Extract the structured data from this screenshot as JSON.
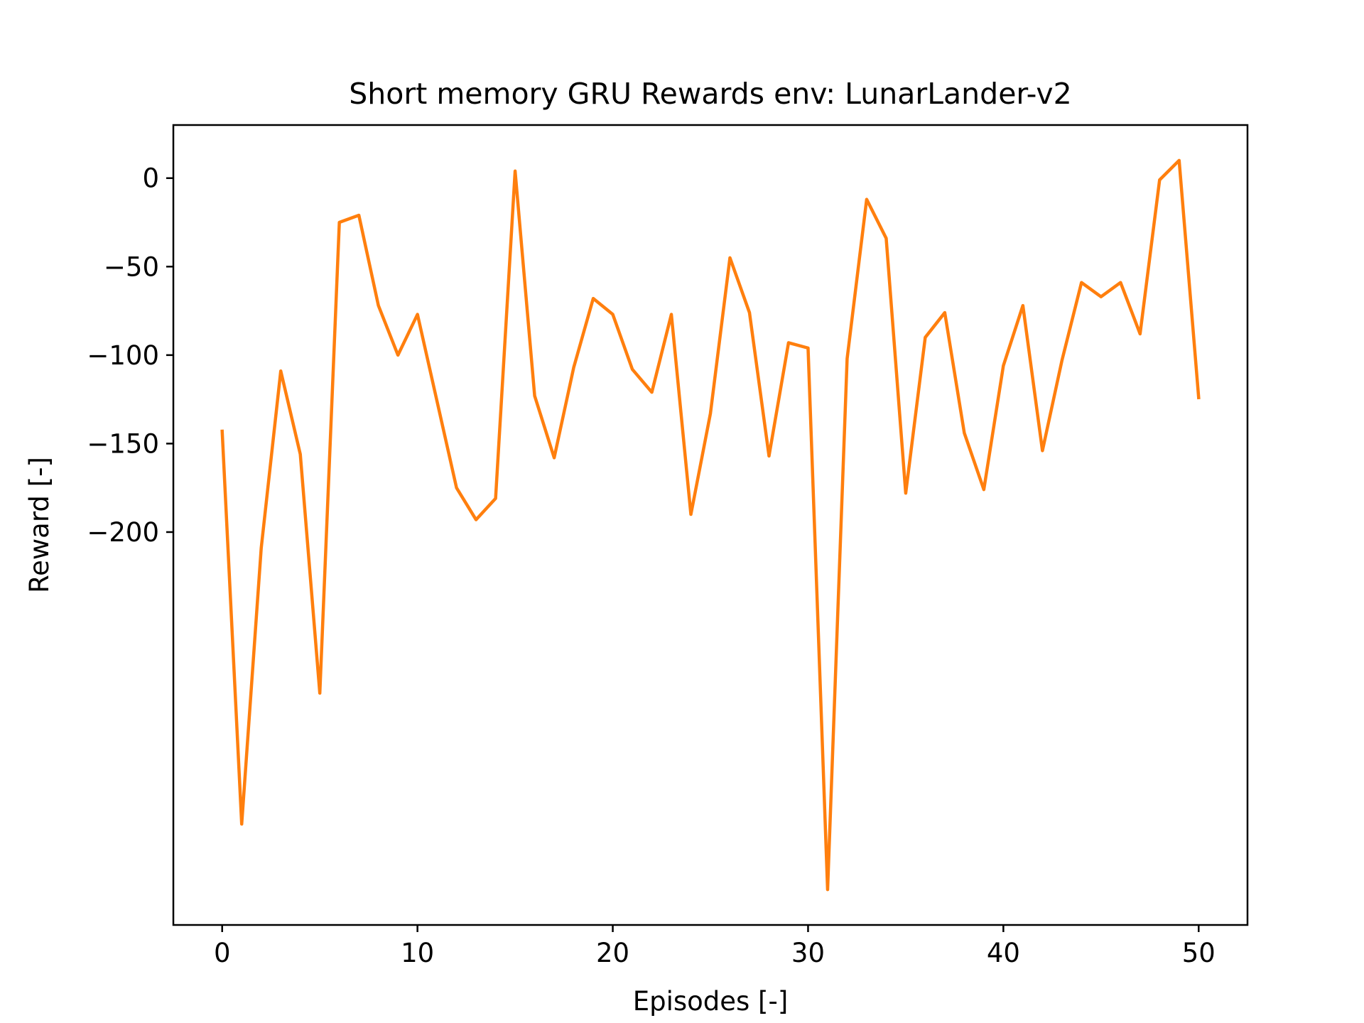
{
  "chart_data": {
    "type": "line",
    "title": "Short memory GRU Rewards env: LunarLander-v2",
    "xlabel": "Episodes [-]",
    "ylabel": "Reward [-]",
    "xlim": [
      -2.5,
      52.5
    ],
    "ylim": [
      -422,
      30
    ],
    "x_ticks": [
      0,
      10,
      20,
      30,
      40,
      50
    ],
    "y_ticks": [
      0,
      -50,
      -100,
      -150,
      -200
    ],
    "grid": false,
    "legend": "none",
    "series": [
      {
        "color": "#ff7f0e",
        "x": [
          0,
          1,
          2,
          3,
          4,
          5,
          6,
          7,
          8,
          9,
          10,
          11,
          12,
          13,
          14,
          15,
          16,
          17,
          18,
          19,
          20,
          21,
          22,
          23,
          24,
          25,
          26,
          27,
          28,
          29,
          30,
          31,
          32,
          33,
          34,
          35,
          36,
          37,
          38,
          39,
          40,
          41,
          42,
          43,
          44,
          45,
          46,
          47,
          48,
          49,
          50
        ],
        "values": [
          -143,
          -365,
          -209,
          -109,
          -156,
          -291,
          -25,
          -21,
          -72,
          -100,
          -77,
          -126,
          -175,
          -193,
          -181,
          4,
          -123,
          -158,
          -107,
          -68,
          -77,
          -108,
          -121,
          -77,
          -190,
          -133,
          -45,
          -76,
          -157,
          -93,
          -96,
          -402,
          -102,
          -12,
          -34,
          -178,
          -90,
          -76,
          -144,
          -176,
          -106,
          -72,
          -154,
          -103,
          -59,
          -67,
          -59,
          -88,
          -1,
          10,
          -124
        ]
      }
    ]
  }
}
